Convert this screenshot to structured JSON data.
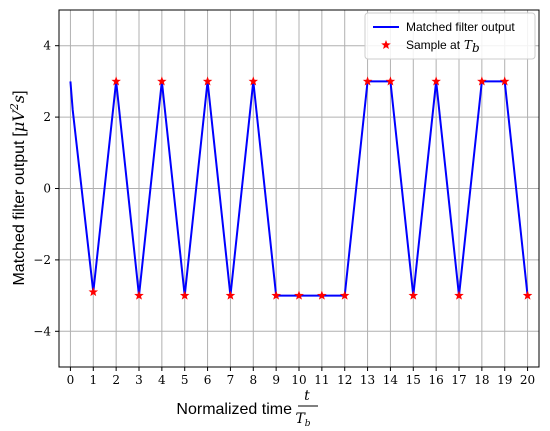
{
  "chart_data": {
    "type": "line",
    "xlabel": "Normalized time",
    "xlabel_fraction": {
      "numerator": "t",
      "denominator": "T",
      "denominator_subscript": "b"
    },
    "ylabel": "Matched filter output",
    "ylabel_unit": {
      "open": "[",
      "mu": "μ",
      "V": "V",
      "exp": "2",
      "s": "s",
      "close": "]"
    },
    "xlim": [
      -0.5,
      20.5
    ],
    "ylim": [
      -5,
      5
    ],
    "xticks": [
      "0",
      "1",
      "2",
      "3",
      "4",
      "5",
      "6",
      "7",
      "8",
      "9",
      "10",
      "11",
      "12",
      "13",
      "14",
      "15",
      "16",
      "17",
      "18",
      "19",
      "20"
    ],
    "yticks": [
      {
        "value": 4,
        "label": "4"
      },
      {
        "value": 2,
        "label": "2"
      },
      {
        "value": 0,
        "label": "0"
      },
      {
        "value": -2,
        "label": "−2"
      },
      {
        "value": -4,
        "label": "−4"
      }
    ],
    "grid": true,
    "legend_position": "top-right",
    "series": [
      {
        "name": "Matched filter output",
        "type": "line",
        "color": "#0000ff",
        "x": [
          0,
          0.1,
          1,
          2,
          3,
          4,
          5,
          6,
          7,
          8,
          9,
          10,
          11,
          12,
          13,
          14,
          15,
          16,
          17,
          18,
          19,
          20
        ],
        "y": [
          3.0,
          2.2,
          -2.9,
          3.0,
          -3.0,
          3.0,
          -3.0,
          3.0,
          -3.0,
          3.0,
          -3.0,
          -3.0,
          -3.0,
          -3.0,
          3.0,
          3.0,
          -3.0,
          3.0,
          -3.0,
          3.0,
          3.0,
          -3.0
        ]
      },
      {
        "name": "Sample at",
        "name_math": {
          "base": "T",
          "subscript": "b"
        },
        "type": "scatter",
        "marker": "star",
        "color": "#ff0000",
        "x": [
          1,
          2,
          3,
          4,
          5,
          6,
          7,
          8,
          9,
          10,
          11,
          12,
          13,
          14,
          15,
          16,
          17,
          18,
          19,
          20
        ],
        "y": [
          -2.9,
          3.0,
          -3.0,
          3.0,
          -3.0,
          3.0,
          -3.0,
          3.0,
          -3.0,
          -3.0,
          -3.0,
          -3.0,
          3.0,
          3.0,
          -3.0,
          3.0,
          -3.0,
          3.0,
          3.0,
          -3.0
        ]
      }
    ]
  }
}
